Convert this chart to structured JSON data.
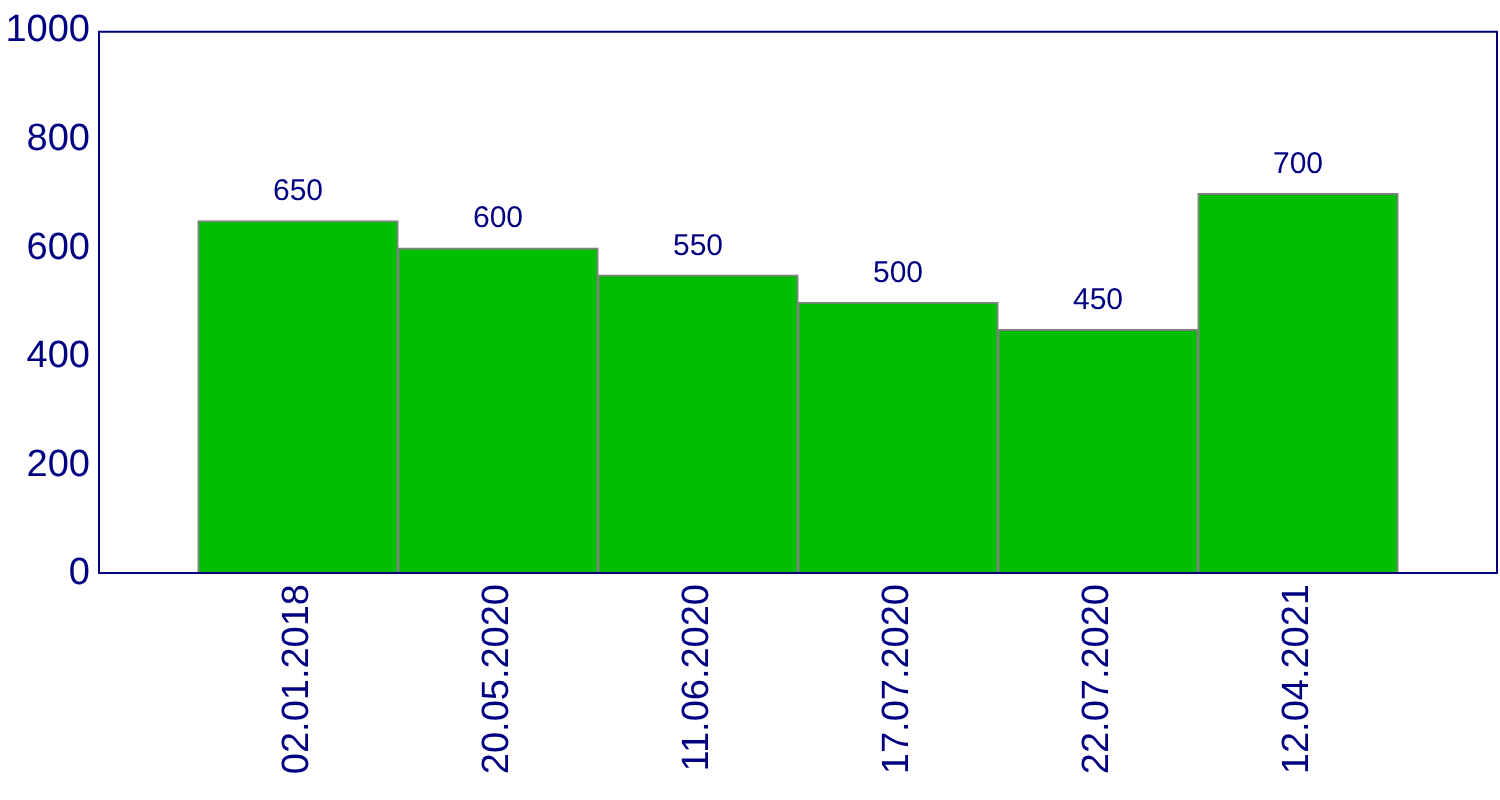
{
  "chart_data": {
    "type": "bar",
    "categories": [
      "02.01.2018",
      "20.05.2020",
      "11.06.2020",
      "17.07.2020",
      "22.07.2020",
      "12.04.2021"
    ],
    "values": [
      650,
      600,
      550,
      500,
      450,
      700
    ],
    "color": "#00bf00",
    "ylim": [
      0,
      1000
    ],
    "yticks": [
      0,
      200,
      400,
      600,
      800,
      1000
    ],
    "grid": false,
    "data_labels": true
  }
}
